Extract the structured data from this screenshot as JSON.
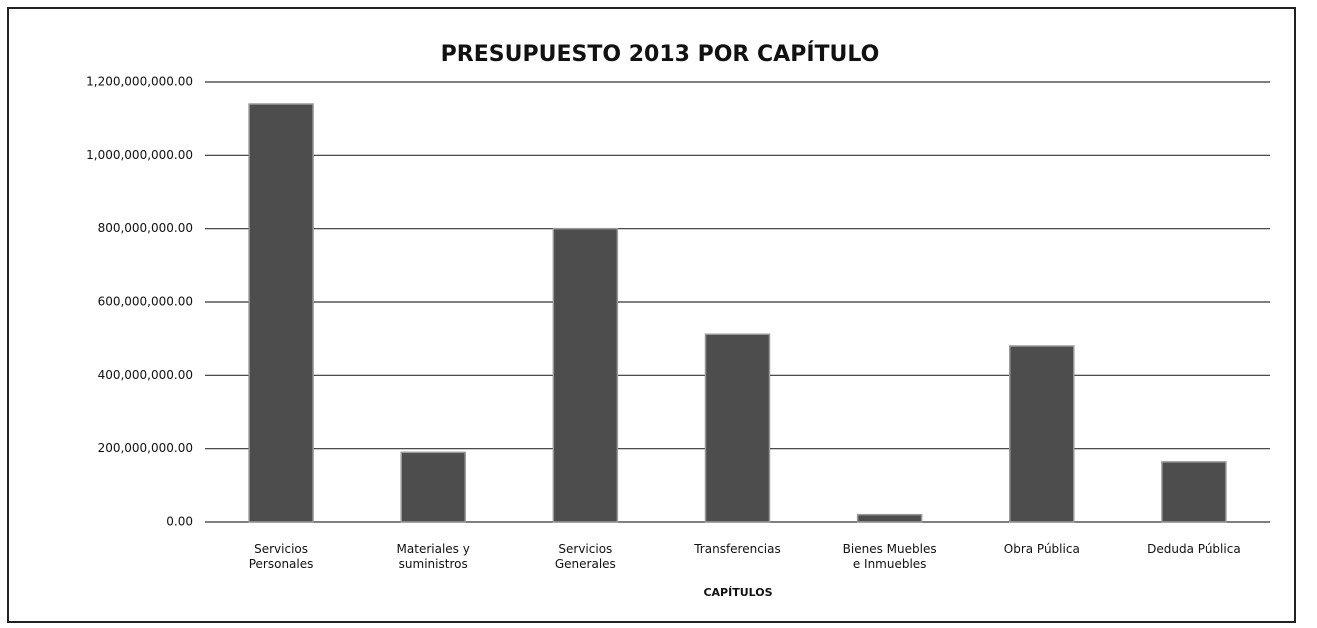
{
  "chart_data": {
    "type": "bar",
    "title": "PRESUPUESTO 2013 POR CAPÍTULO",
    "x_label": "CAPÍTULOS",
    "categories": [
      "Servicios Personales",
      "Materiales y suministros",
      "Servicios Generales",
      "Transferencias",
      "Bienes Muebles e Inmuebles",
      "Obra Pública",
      "Deduda Pública"
    ],
    "values": [
      1140000000,
      190000000,
      800000000,
      512000000,
      20000000,
      480000000,
      164000000
    ],
    "color": "#4d4d4d",
    "ylim": [
      0,
      1200000000
    ],
    "yticks": [
      {
        "value": 0,
        "label": "0.00"
      },
      {
        "value": 200000000,
        "label": "200,000,000.00"
      },
      {
        "value": 400000000,
        "label": "400,000,000.00"
      },
      {
        "value": 600000000,
        "label": "600,000,000.00"
      },
      {
        "value": 800000000,
        "label": "800,000,000.00"
      },
      {
        "value": 1000000000,
        "label": "1,000,000,000.00"
      },
      {
        "value": 1200000000,
        "label": "1,200,000,000.00"
      }
    ],
    "grid": true
  }
}
